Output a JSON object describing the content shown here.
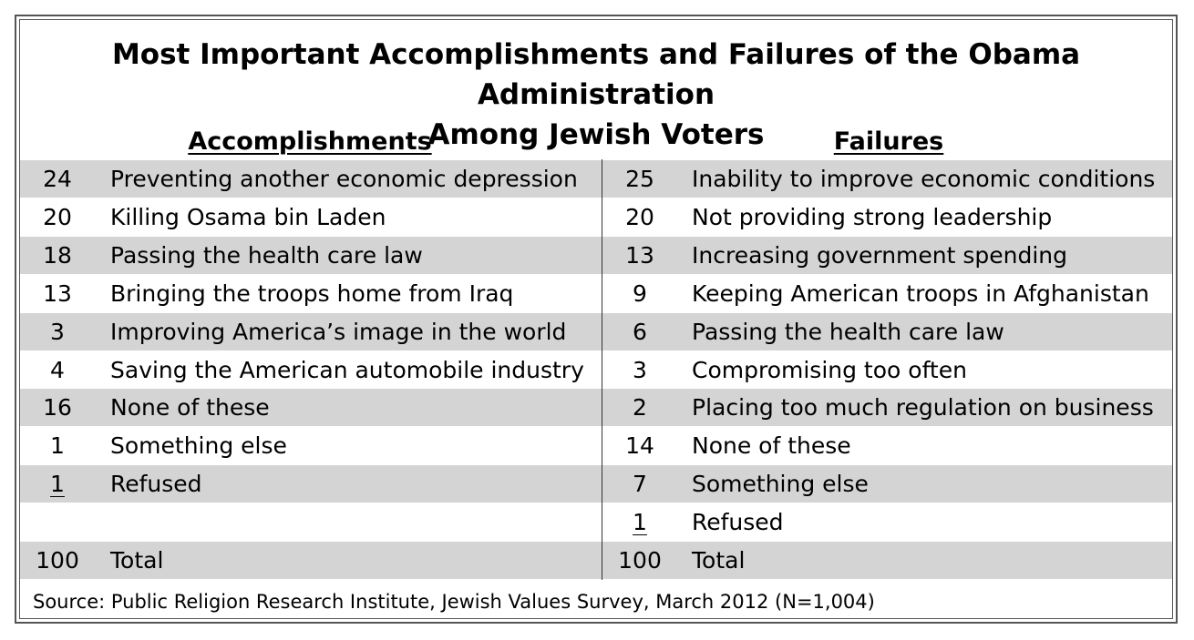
{
  "title_line1": "Most Important Accomplishments and Failures of the Obama Administration",
  "title_line2": "Among Jewish Voters",
  "accomplishments_header": "Accomplishments",
  "failures_header": "Failures",
  "source": "Source: Public Religion Research Institute, Jewish Values Survey, March 2012 (N=1,004)",
  "colors": {
    "shade": "#d4d4d4",
    "border": "#555555"
  },
  "chart_data": {
    "type": "table",
    "title": "Most Important Accomplishments and Failures of the Obama Administration Among Jewish Voters",
    "columns": [
      "Accomplishments",
      "Failures"
    ],
    "rows": [
      {
        "acc_value": "24",
        "acc_label": "Preventing another economic depression",
        "fail_value": "25",
        "fail_label": "Inability to improve economic conditions",
        "shade": true
      },
      {
        "acc_value": "20",
        "acc_label": "Killing Osama bin Laden",
        "fail_value": "20",
        "fail_label": "Not providing strong leadership",
        "shade": false
      },
      {
        "acc_value": "18",
        "acc_label": "Passing the health care law",
        "fail_value": "13",
        "fail_label": "Increasing government spending",
        "shade": true
      },
      {
        "acc_value": "13",
        "acc_label": "Bringing the troops home from Iraq",
        "fail_value": "9",
        "fail_label": "Keeping American troops in Afghanistan",
        "shade": false
      },
      {
        "acc_value": "3",
        "acc_label": "Improving America’s image in the world",
        "fail_value": "6",
        "fail_label": "Passing the health care law",
        "shade": true
      },
      {
        "acc_value": "4",
        "acc_label": "Saving the American automobile industry",
        "fail_value": "3",
        "fail_label": "Compromising too often",
        "shade": false
      },
      {
        "acc_value": "16",
        "acc_label": "None of these",
        "fail_value": "2",
        "fail_label": "Placing too much regulation on business",
        "shade": true
      },
      {
        "acc_value": "1",
        "acc_label": "Something else",
        "fail_value": "14",
        "fail_label": "None of these",
        "shade": false
      },
      {
        "acc_value": "1",
        "acc_label": "Refused",
        "fail_value": "7",
        "fail_label": "Something else",
        "shade": true,
        "acc_underline": true
      },
      {
        "acc_value": "",
        "acc_label": "",
        "fail_value": "1",
        "fail_label": "Refused",
        "shade": false,
        "fail_underline": true
      },
      {
        "acc_value": "100",
        "acc_label": "Total",
        "fail_value": "100",
        "fail_label": "Total",
        "shade": true
      }
    ]
  }
}
